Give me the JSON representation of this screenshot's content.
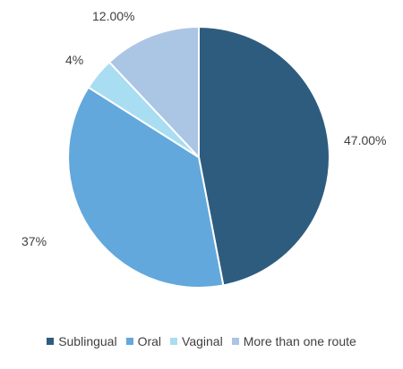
{
  "chart_data": {
    "type": "pie",
    "categories": [
      "Sublingual",
      "Oral",
      "Vaginal",
      "More than one route"
    ],
    "values": [
      47,
      37,
      4,
      12
    ],
    "value_labels": [
      "47.00%",
      "37%",
      "4%",
      "12.00%"
    ],
    "colors": [
      "#2E5C7F",
      "#62A8DC",
      "#A9DDF1",
      "#ABC5E4"
    ],
    "start_angle_deg": 0,
    "direction": "clockwise",
    "legend_position": "bottom"
  }
}
